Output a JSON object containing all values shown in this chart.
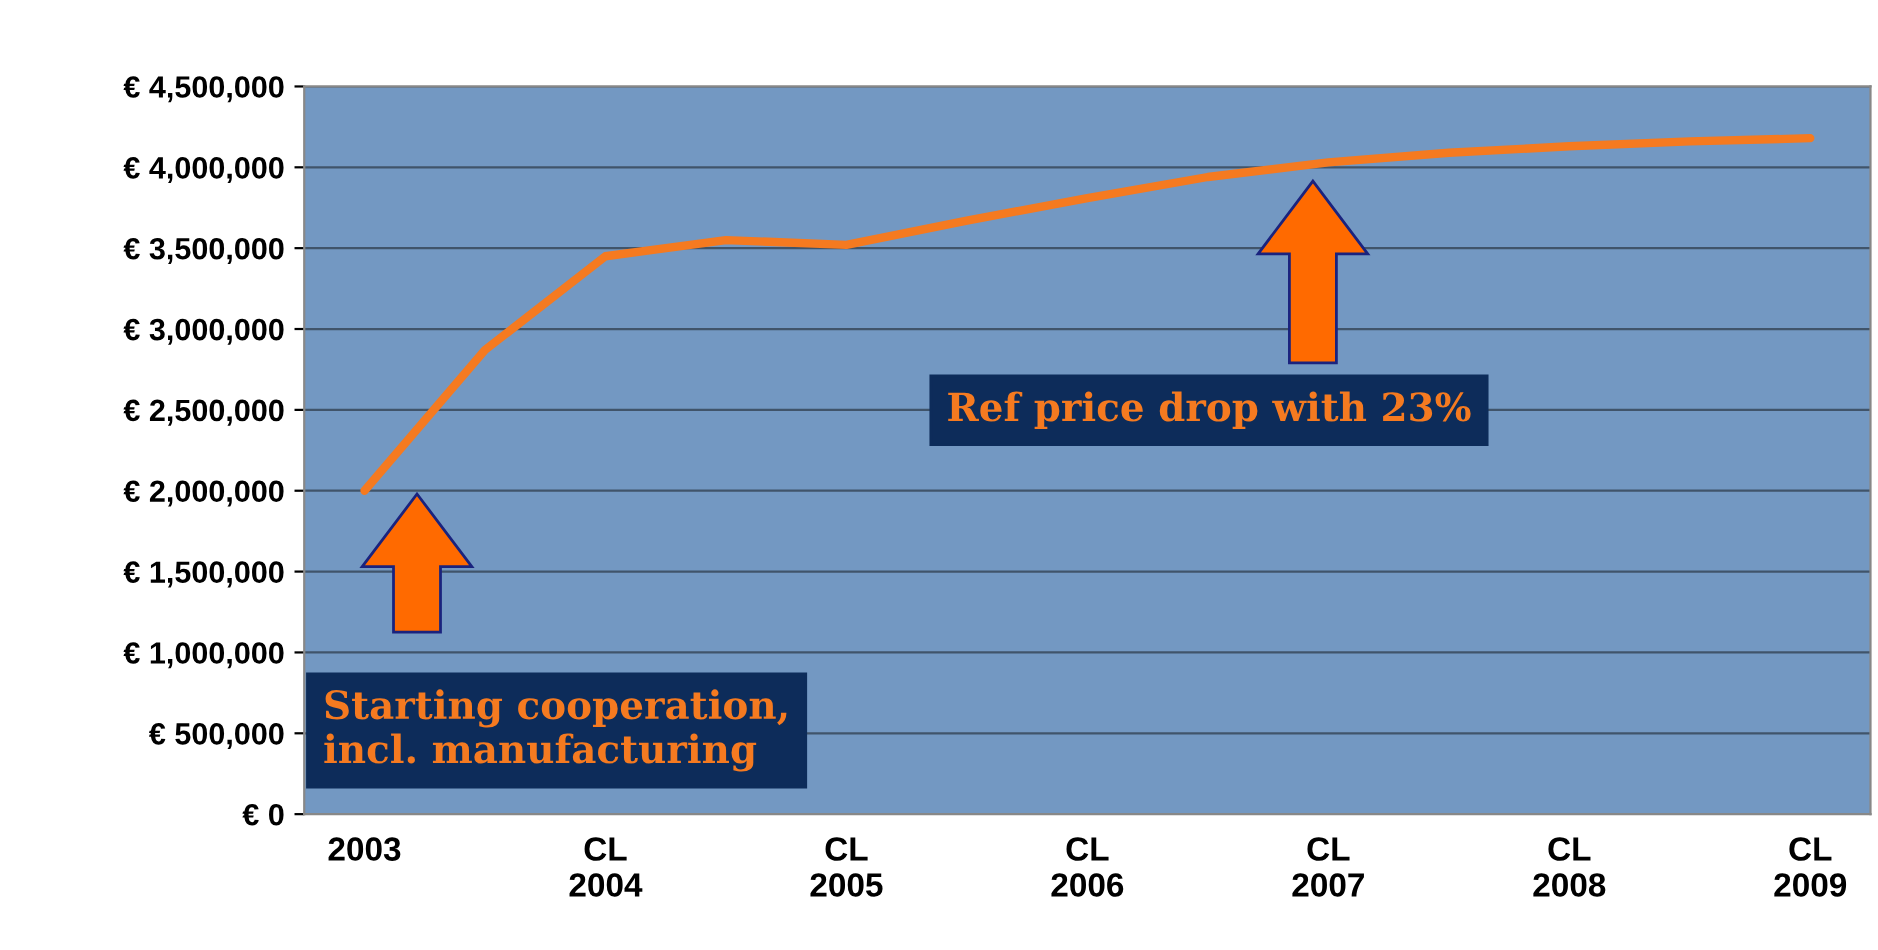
{
  "chart_data": {
    "type": "line",
    "categories": [
      "2003",
      null,
      "CL\n2004",
      null,
      "CL\n2005",
      null,
      "CL\n2006",
      null,
      "CL\n2007",
      null,
      "CL\n2008",
      null,
      "CL\n2009"
    ],
    "series": [
      {
        "color": "#f57a20",
        "values": [
          2000000,
          2870000,
          3450000,
          3550000,
          3520000,
          3670000,
          3810000,
          3940000,
          4030000,
          4090000,
          4130000,
          4160000,
          4180000
        ]
      }
    ],
    "ylim": [
      0,
      4500000
    ],
    "yticks": [
      {
        "value": 0,
        "label": "€ 0"
      },
      {
        "value": 500000,
        "label": "€ 500,000"
      },
      {
        "value": 1000000,
        "label": "€ 1,000,000"
      },
      {
        "value": 1500000,
        "label": "€ 1,500,000"
      },
      {
        "value": 2000000,
        "label": "€ 2,000,000"
      },
      {
        "value": 2500000,
        "label": "€ 2,500,000"
      },
      {
        "value": 3000000,
        "label": "€ 3,000,000"
      },
      {
        "value": 3500000,
        "label": "€ 3,500,000"
      },
      {
        "value": 4000000,
        "label": "€ 4,000,000"
      },
      {
        "value": 4500000,
        "label": "€ 4,500,000"
      }
    ],
    "grid": "y",
    "marker": "none",
    "line_style": "solid",
    "annotations": [
      "Starting cooperation,\nincl. manufacturing",
      "Ref price drop with 23%"
    ]
  }
}
